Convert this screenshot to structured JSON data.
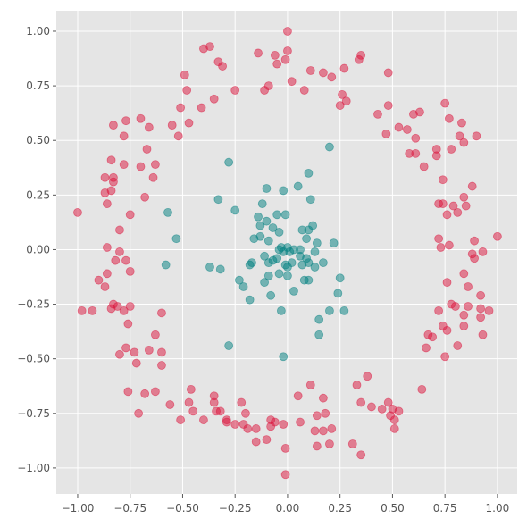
{
  "chart_data": {
    "type": "scatter",
    "xlim": [
      -1.102,
      1.094
    ],
    "ylim": [
      -1.119,
      1.094
    ],
    "xticks": [
      {
        "value": -1,
        "label": "−1.00"
      },
      {
        "value": -0.75,
        "label": "−0.75"
      },
      {
        "value": -0.5,
        "label": "−0.50"
      },
      {
        "value": -0.25,
        "label": "−0.25"
      },
      {
        "value": 0,
        "label": "0.00"
      },
      {
        "value": 0.25,
        "label": "0.25"
      },
      {
        "value": 0.5,
        "label": "0.50"
      },
      {
        "value": 0.75,
        "label": "0.75"
      },
      {
        "value": 1,
        "label": "1.00"
      }
    ],
    "yticks": [
      {
        "value": -1,
        "label": "−1.00"
      },
      {
        "value": -0.75,
        "label": "−0.75"
      },
      {
        "value": -0.5,
        "label": "−0.50"
      },
      {
        "value": -0.25,
        "label": "−0.25"
      },
      {
        "value": 0,
        "label": "0.00"
      },
      {
        "value": 0.25,
        "label": "0.25"
      },
      {
        "value": 0.5,
        "label": "0.50"
      },
      {
        "value": 0.75,
        "label": "0.75"
      },
      {
        "value": 1,
        "label": "1.00"
      }
    ],
    "grid": true,
    "series": [
      {
        "color": "#dc143c",
        "x": [
          0.0,
          0.0,
          -0.14,
          -0.37,
          -0.4,
          -0.33,
          -0.31,
          -0.06,
          -0.05,
          -0.01,
          0.35,
          0.34,
          0.27,
          0.11,
          0.17,
          -0.49,
          -0.48,
          -0.25,
          -0.11,
          -0.09,
          0.02,
          0.08,
          0.21,
          0.26,
          0.48,
          -0.35,
          0.28,
          0.25,
          -0.41,
          -0.51,
          -0.47,
          -0.55,
          -0.52,
          -0.7,
          -0.77,
          -0.83,
          -0.66,
          -0.78,
          0.43,
          0.48,
          0.47,
          0.53,
          0.6,
          0.63,
          0.57,
          0.61,
          0.58,
          0.61,
          0.65,
          0.77,
          0.83,
          0.75,
          0.82,
          0.9,
          0.84,
          0.71,
          0.71,
          0.78,
          0.74,
          0.88,
          0.84,
          0.72,
          0.74,
          0.79,
          0.85,
          0.81,
          0.76,
          0.72,
          0.73,
          0.77,
          0.89,
          1.0,
          0.88,
          0.93,
          0.89,
          0.84,
          0.76,
          0.86,
          0.92,
          0.78,
          0.8,
          0.86,
          0.92,
          0.96,
          0.92,
          0.72,
          0.84,
          0.74,
          0.84,
          0.76,
          0.93,
          0.67,
          0.69,
          0.66,
          0.81,
          0.75,
          0.64,
          0.38,
          0.33,
          0.48,
          0.35,
          0.4,
          0.45,
          0.5,
          0.53,
          0.49,
          0.17,
          0.11,
          0.05,
          0.14,
          0.18,
          0.51,
          0.51,
          0.31,
          0.35,
          0.13,
          0.17,
          0.21,
          0.14,
          0.2,
          0.06,
          -0.02,
          -0.01,
          -0.01,
          -0.06,
          -0.08,
          -0.08,
          -0.1,
          -0.15,
          -0.15,
          -0.22,
          -0.2,
          -0.25,
          -0.29,
          -0.29,
          -0.21,
          -0.19,
          -0.32,
          -0.34,
          -0.35,
          -0.35,
          -0.4,
          -0.45,
          -0.47,
          -0.46,
          -0.51,
          -0.56,
          -0.63,
          -0.68,
          -0.71,
          -0.76,
          -0.6,
          -0.6,
          -0.63,
          -0.66,
          -0.73,
          -0.8,
          -0.77,
          -0.72,
          -0.6,
          -0.76,
          -0.75,
          -0.81,
          -0.83,
          -0.84,
          -0.78,
          -0.98,
          -0.93,
          -0.9,
          -0.87,
          -0.86,
          -0.75,
          -0.77,
          -0.82,
          -0.8,
          -0.86,
          -0.8,
          -0.75,
          -1.0,
          -0.87,
          -0.84,
          -0.83,
          -0.87,
          -0.84,
          -0.78,
          -0.83,
          -0.86,
          -0.7,
          -0.63,
          -0.64,
          -0.68,
          -0.67
        ],
        "y": [
          1.0,
          0.91,
          0.9,
          0.93,
          0.92,
          0.86,
          0.84,
          0.89,
          0.85,
          0.87,
          0.89,
          0.87,
          0.83,
          0.82,
          0.81,
          0.8,
          0.73,
          0.73,
          0.73,
          0.75,
          0.77,
          0.73,
          0.79,
          0.71,
          0.81,
          0.69,
          0.68,
          0.66,
          0.65,
          0.65,
          0.58,
          0.57,
          0.52,
          0.6,
          0.59,
          0.57,
          0.56,
          0.52,
          0.62,
          0.66,
          0.53,
          0.56,
          0.62,
          0.63,
          0.55,
          0.51,
          0.44,
          0.44,
          0.38,
          0.6,
          0.58,
          0.67,
          0.52,
          0.52,
          0.49,
          0.46,
          0.43,
          0.46,
          0.32,
          0.29,
          0.24,
          0.21,
          0.21,
          0.2,
          0.2,
          0.17,
          0.16,
          0.05,
          0.01,
          0.02,
          0.04,
          0.06,
          -0.02,
          -0.01,
          -0.04,
          -0.11,
          -0.15,
          -0.17,
          -0.21,
          -0.25,
          -0.26,
          -0.26,
          -0.27,
          -0.28,
          -0.31,
          -0.28,
          -0.3,
          -0.35,
          -0.35,
          -0.37,
          -0.39,
          -0.39,
          -0.4,
          -0.45,
          -0.44,
          -0.49,
          -0.64,
          -0.58,
          -0.62,
          -0.7,
          -0.7,
          -0.72,
          -0.73,
          -0.73,
          -0.74,
          -0.76,
          -0.68,
          -0.62,
          -0.67,
          -0.76,
          -0.75,
          -0.78,
          -0.82,
          -0.89,
          -0.94,
          -0.83,
          -0.83,
          -0.82,
          -0.9,
          -0.89,
          -0.79,
          -0.8,
          -0.91,
          -1.03,
          -0.79,
          -0.78,
          -0.81,
          -0.87,
          -0.88,
          -0.82,
          -0.7,
          -0.75,
          -0.8,
          -0.78,
          -0.79,
          -0.8,
          -0.82,
          -0.74,
          -0.74,
          -0.67,
          -0.7,
          -0.78,
          -0.74,
          -0.7,
          -0.64,
          -0.78,
          -0.71,
          -0.65,
          -0.66,
          -0.75,
          -0.65,
          -0.53,
          -0.47,
          -0.39,
          -0.46,
          -0.47,
          -0.48,
          -0.45,
          -0.52,
          -0.29,
          -0.34,
          -0.26,
          -0.26,
          -0.25,
          -0.27,
          -0.28,
          -0.28,
          -0.28,
          -0.14,
          -0.17,
          -0.11,
          -0.1,
          -0.05,
          -0.05,
          -0.01,
          0.01,
          0.09,
          0.16,
          0.17,
          0.26,
          0.27,
          0.31,
          0.33,
          0.41,
          0.39,
          0.33,
          0.21,
          0.38,
          0.39,
          0.33,
          0.24,
          0.46
        ]
      },
      {
        "color": "#008080",
        "x": [
          0.2,
          -0.28,
          0.1,
          0.05,
          -0.1,
          -0.02,
          -0.33,
          0.11,
          -0.12,
          -0.57,
          -0.25,
          -0.14,
          -0.05,
          -0.01,
          -0.1,
          -0.13,
          -0.07,
          0.12,
          0.1,
          0.07,
          -0.04,
          -0.13,
          -0.16,
          -0.53,
          -0.09,
          0.09,
          0.22,
          0.14,
          -0.03,
          0.0,
          0.03,
          0.06,
          0.01,
          -0.02,
          -0.04,
          -0.05,
          -0.07,
          -0.11,
          -0.09,
          0.06,
          0.09,
          0.13,
          0.1,
          0.07,
          0.13,
          0.17,
          0.0,
          -0.01,
          0.02,
          -0.17,
          -0.18,
          -0.58,
          -0.37,
          -0.32,
          -0.09,
          -0.04,
          0.0,
          0.1,
          0.08,
          0.25,
          -0.23,
          -0.11,
          -0.21,
          0.03,
          0.24,
          -0.08,
          -0.18,
          -0.03,
          0.2,
          0.27,
          0.15,
          0.15,
          -0.28,
          -0.02
        ],
        "y": [
          0.47,
          0.4,
          0.35,
          0.29,
          0.28,
          0.27,
          0.23,
          0.23,
          0.21,
          0.17,
          0.18,
          0.15,
          0.16,
          0.16,
          0.13,
          0.11,
          0.1,
          0.11,
          0.09,
          0.09,
          0.08,
          0.06,
          0.05,
          0.05,
          0.04,
          0.05,
          0.03,
          0.03,
          0.01,
          0.01,
          0.0,
          0.0,
          -0.01,
          -0.01,
          0.0,
          -0.04,
          -0.05,
          -0.03,
          -0.06,
          -0.03,
          -0.04,
          -0.01,
          -0.06,
          -0.07,
          -0.08,
          -0.06,
          -0.08,
          -0.07,
          -0.06,
          -0.06,
          -0.07,
          -0.07,
          -0.08,
          -0.09,
          -0.12,
          -0.11,
          -0.12,
          -0.14,
          -0.14,
          -0.13,
          -0.14,
          -0.15,
          -0.17,
          -0.19,
          -0.2,
          -0.21,
          -0.23,
          -0.28,
          -0.28,
          -0.28,
          -0.32,
          -0.39,
          -0.44,
          -0.49
        ]
      }
    ]
  }
}
